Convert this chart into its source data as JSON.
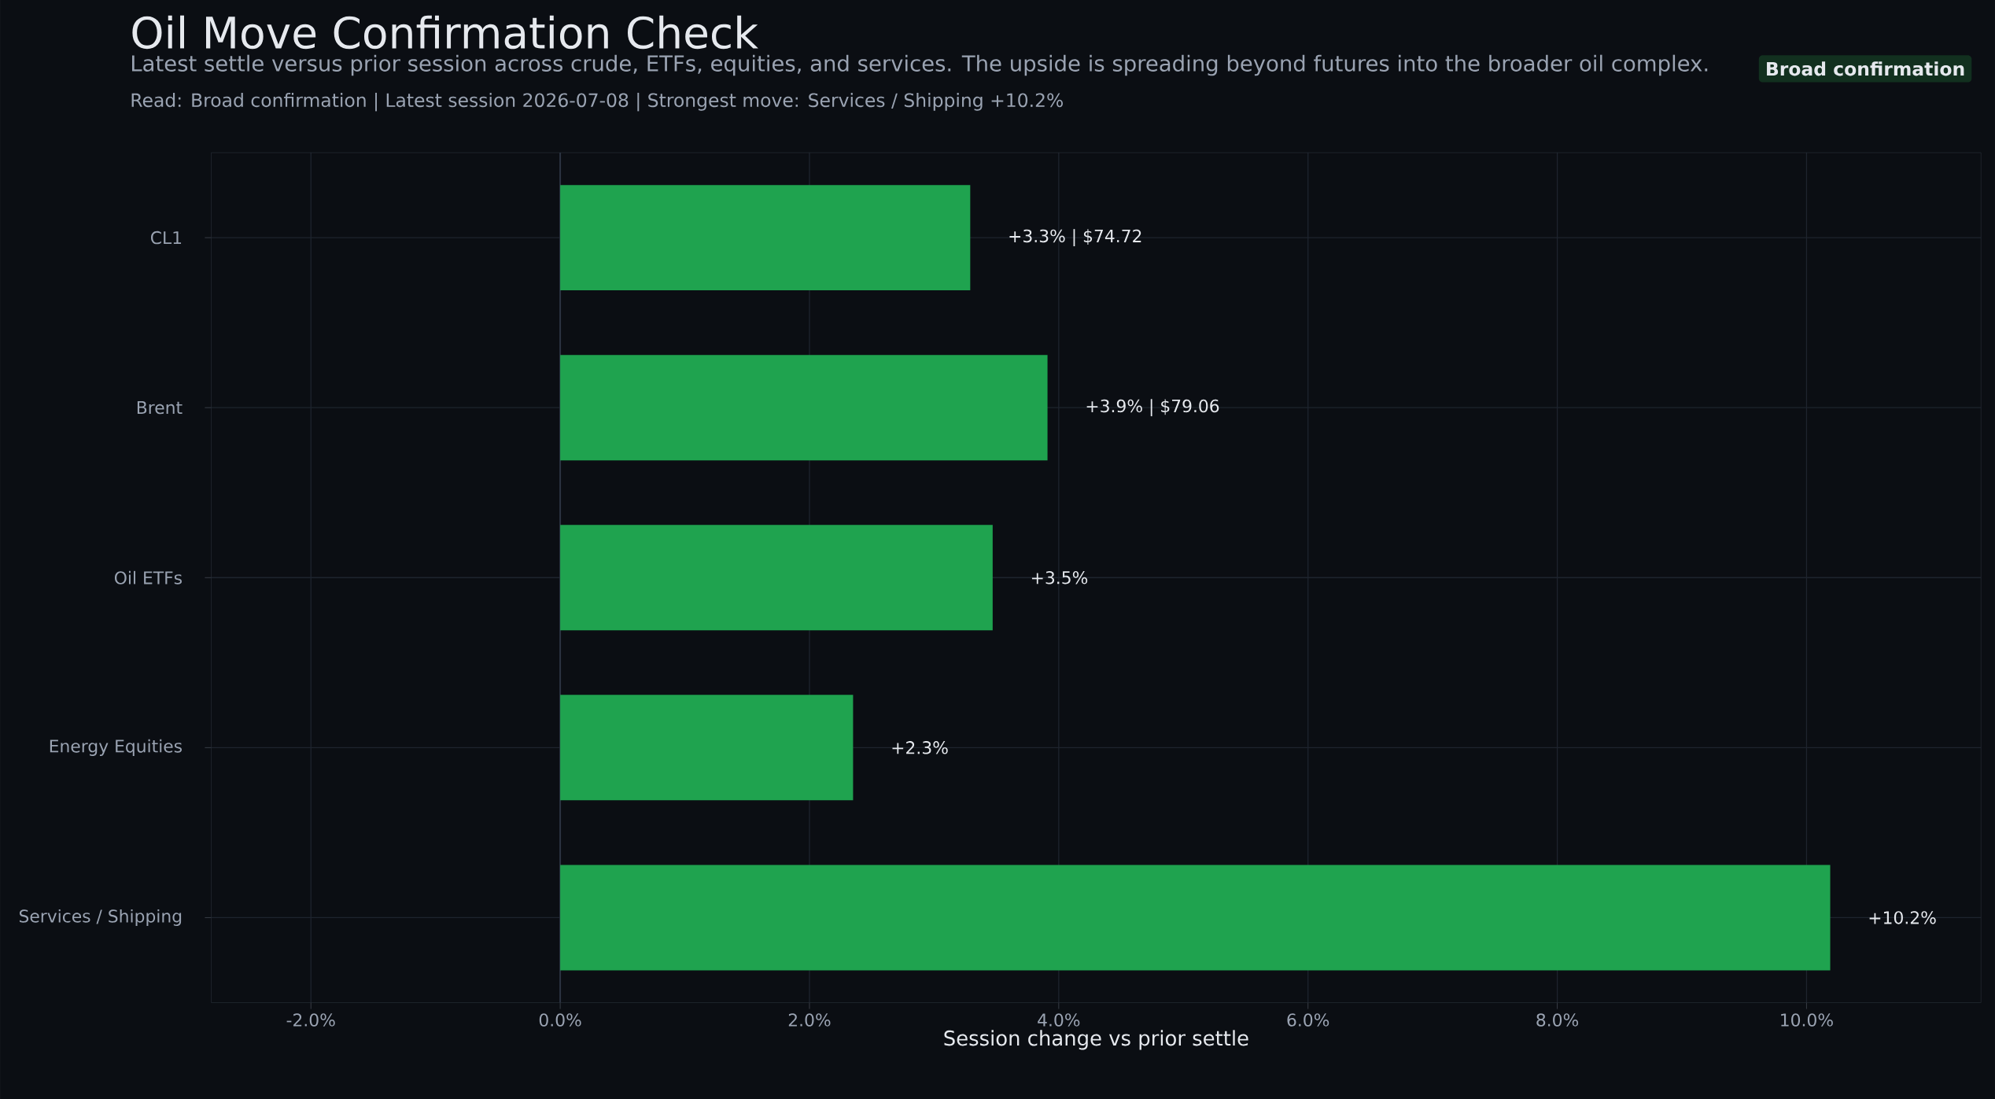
{
  "chart_data": {
    "type": "bar",
    "orientation": "horizontal",
    "title": "Oil Move Confirmation Check",
    "subtitle": "Latest settle versus prior session across crude, ETFs, equities, and services. The upside is spreading beyond futures into the broader oil complex.",
    "annotations": [
      "Read: Broad confirmation  |  Latest session 2026-07-08  |  Strongest move: Services / Shipping +10.2%",
      "Broad confirmation"
    ],
    "categories": [
      "CL1",
      "Brent",
      "Oil ETFs",
      "Energy Equities",
      "Services / Shipping"
    ],
    "values": [
      3.29,
      3.91,
      3.47,
      2.35,
      10.19
    ],
    "value_labels": [
      "+3.3% | $74.72",
      "+3.9% | $79.06",
      "+3.5%",
      "+2.3%",
      "+10.2%"
    ],
    "color": "#1fa34f",
    "xlabel": "Session change vs prior settle",
    "xlim": [
      -2.8,
      11.4
    ],
    "xticks": [
      {
        "value": -2,
        "label": "-2.0%"
      },
      {
        "value": 0,
        "label": "0.0%"
      },
      {
        "value": 2,
        "label": "2.0%"
      },
      {
        "value": 4,
        "label": "4.0%"
      },
      {
        "value": 6,
        "label": "6.0%"
      },
      {
        "value": 8,
        "label": "8.0%"
      },
      {
        "value": 10,
        "label": "10.0%"
      }
    ],
    "ref_lines": [
      {
        "axis": "x",
        "value": 0,
        "color": "#2c3442"
      }
    ],
    "grid": true
  }
}
